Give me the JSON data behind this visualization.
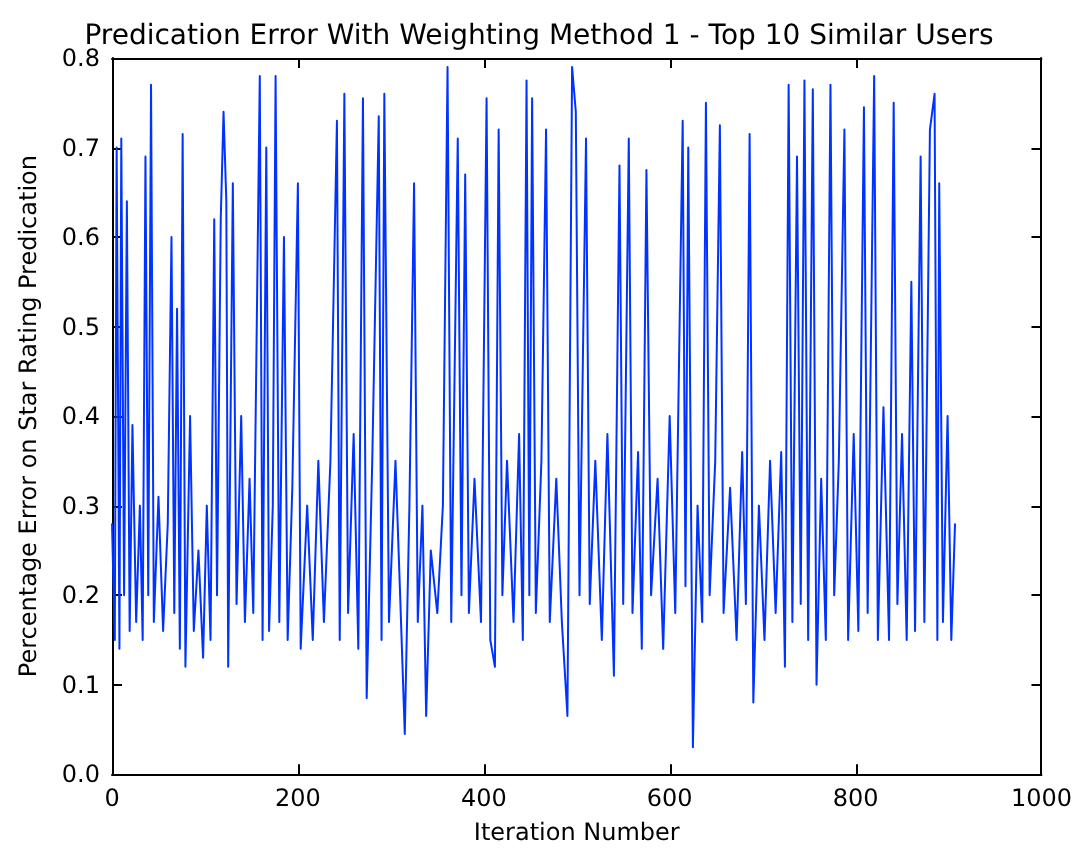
{
  "chart_data": {
    "type": "line",
    "title": "Predication Error With Weighting Method 1 - Top 10 Similar Users",
    "xlabel": "Iteration Number",
    "ylabel": "Percentage Error on Star Rating Predication",
    "xlim": [
      0,
      1000
    ],
    "xticks": [
      0,
      200,
      400,
      600,
      800,
      1000
    ],
    "ylim": [
      0,
      0.8
    ],
    "yticks": [
      {
        "value": 0,
        "label": "0.0"
      },
      0.1,
      0.2,
      0.3,
      0.4,
      0.5,
      0.6,
      0.7,
      0.8
    ],
    "grid": false,
    "marker": "none",
    "line_style": "solid",
    "series": [
      {
        "color": "#0033ff",
        "x": [
          0,
          3,
          5,
          8,
          10,
          13,
          16,
          19,
          22,
          26,
          30,
          33,
          36,
          39,
          42,
          45,
          50,
          55,
          60,
          64,
          67,
          70,
          73,
          76,
          79,
          84,
          88,
          93,
          98,
          102,
          106,
          110,
          113,
          117,
          120,
          123,
          125,
          130,
          134,
          139,
          143,
          148,
          152,
          159,
          162,
          166,
          169,
          173,
          176,
          180,
          185,
          189,
          194,
          200,
          203,
          210,
          216,
          222,
          228,
          235,
          242,
          245,
          250,
          254,
          260,
          265,
          270,
          274,
          280,
          287,
          290,
          293,
          298,
          305,
          310,
          315,
          320,
          325,
          329,
          334,
          338,
          343,
          350,
          356,
          361,
          365,
          372,
          376,
          380,
          384,
          390,
          397,
          403,
          407,
          412,
          416,
          420,
          425,
          432,
          438,
          442,
          446,
          449,
          452,
          456,
          462,
          467,
          471,
          478,
          484,
          490,
          495,
          499,
          503,
          510,
          514,
          520,
          527,
          533,
          540,
          546,
          550,
          556,
          560,
          566,
          570,
          575,
          580,
          587,
          593,
          600,
          606,
          614,
          617,
          620,
          625,
          630,
          635,
          639,
          643,
          649,
          654,
          658,
          665,
          672,
          678,
          682,
          686,
          690,
          696,
          702,
          708,
          714,
          720,
          724,
          728,
          732,
          737,
          741,
          745,
          749,
          754,
          758,
          763,
          768,
          773,
          777,
          782,
          788,
          792,
          798,
          803,
          809,
          813,
          820,
          824,
          830,
          836,
          841,
          845,
          850,
          855,
          860,
          864,
          870,
          874,
          880,
          885,
          888,
          890,
          894,
          899,
          903,
          907
        ],
        "values": [
          0.28,
          0.15,
          0.7,
          0.14,
          0.71,
          0.2,
          0.64,
          0.16,
          0.39,
          0.17,
          0.3,
          0.15,
          0.69,
          0.2,
          0.77,
          0.17,
          0.31,
          0.16,
          0.28,
          0.6,
          0.18,
          0.52,
          0.14,
          0.715,
          0.12,
          0.4,
          0.16,
          0.25,
          0.13,
          0.3,
          0.15,
          0.62,
          0.2,
          0.62,
          0.74,
          0.64,
          0.12,
          0.66,
          0.19,
          0.4,
          0.17,
          0.33,
          0.18,
          0.78,
          0.15,
          0.7,
          0.16,
          0.3,
          0.78,
          0.17,
          0.6,
          0.15,
          0.32,
          0.66,
          0.14,
          0.3,
          0.15,
          0.35,
          0.17,
          0.35,
          0.73,
          0.15,
          0.76,
          0.18,
          0.38,
          0.14,
          0.755,
          0.085,
          0.35,
          0.735,
          0.15,
          0.76,
          0.17,
          0.35,
          0.2,
          0.045,
          0.3,
          0.66,
          0.17,
          0.3,
          0.065,
          0.25,
          0.18,
          0.3,
          0.79,
          0.17,
          0.71,
          0.2,
          0.67,
          0.18,
          0.33,
          0.17,
          0.755,
          0.15,
          0.12,
          0.72,
          0.2,
          0.35,
          0.17,
          0.38,
          0.15,
          0.775,
          0.2,
          0.755,
          0.18,
          0.35,
          0.72,
          0.17,
          0.33,
          0.17,
          0.065,
          0.79,
          0.74,
          0.2,
          0.71,
          0.19,
          0.35,
          0.15,
          0.38,
          0.11,
          0.68,
          0.19,
          0.71,
          0.18,
          0.36,
          0.14,
          0.675,
          0.2,
          0.33,
          0.14,
          0.4,
          0.18,
          0.73,
          0.21,
          0.7,
          0.03,
          0.3,
          0.17,
          0.75,
          0.2,
          0.35,
          0.725,
          0.18,
          0.32,
          0.15,
          0.36,
          0.19,
          0.715,
          0.08,
          0.3,
          0.15,
          0.35,
          0.18,
          0.36,
          0.12,
          0.77,
          0.17,
          0.69,
          0.19,
          0.775,
          0.15,
          0.765,
          0.1,
          0.33,
          0.15,
          0.77,
          0.2,
          0.35,
          0.72,
          0.15,
          0.38,
          0.16,
          0.745,
          0.18,
          0.78,
          0.15,
          0.41,
          0.15,
          0.75,
          0.19,
          0.38,
          0.15,
          0.55,
          0.16,
          0.69,
          0.17,
          0.72,
          0.76,
          0.15,
          0.66,
          0.17,
          0.4,
          0.15,
          0.28
        ]
      }
    ]
  }
}
